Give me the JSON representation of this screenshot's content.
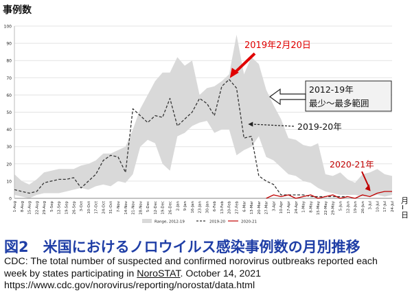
{
  "chart_data": {
    "type": "line",
    "ylabel": "事例数",
    "xlabel": "月-日",
    "ylim": [
      0,
      100
    ],
    "yticks": [
      0,
      10,
      20,
      30,
      40,
      50,
      60,
      70,
      80,
      90,
      100
    ],
    "grid": true,
    "legend_position": "bottom",
    "categories": [
      "1-Aug",
      "8-Aug",
      "15-Aug",
      "22-Aug",
      "29-Aug",
      "5-Sep",
      "12-Sep",
      "19-Sep",
      "26-Sep",
      "3-Oct",
      "10-Oct",
      "17-Oct",
      "24-Oct",
      "31-Oct",
      "7-Nov",
      "14-Nov",
      "21-Nov",
      "28-Nov",
      "5-Dec",
      "12-Dec",
      "19-Dec",
      "26-Dec",
      "2-Jan",
      "9-Jan",
      "16-Jan",
      "23-Jan",
      "30-Jan",
      "6-Feb",
      "13-Feb",
      "20-Feb",
      "27-Feb",
      "6-Mar",
      "13-Mar",
      "20-Mar",
      "27-Mar",
      "3-Apr",
      "10-Apr",
      "17-Apr",
      "24-Apr",
      "1-May",
      "8-May",
      "15-May",
      "22-May",
      "29-May",
      "5-Jun",
      "12-Jun",
      "19-Jun",
      "26-Jun",
      "3-Jul",
      "10-Jul",
      "17-Jul",
      "24-Jul"
    ],
    "range": {
      "name": "Range, 2012-19",
      "color": "#d9d9d9",
      "low": [
        2,
        1,
        0,
        2,
        3,
        3,
        3,
        4,
        5,
        6,
        5,
        7,
        8,
        7,
        10,
        9,
        14,
        30,
        34,
        32,
        20,
        16,
        36,
        38,
        42,
        44,
        45,
        38,
        40,
        40,
        25,
        28,
        30,
        36,
        24,
        22,
        18,
        14,
        13,
        10,
        9,
        6,
        4,
        3,
        2,
        2,
        2,
        1,
        1,
        2,
        1,
        2
      ],
      "high": [
        14,
        10,
        8,
        11,
        15,
        16,
        17,
        17,
        17,
        19,
        20,
        22,
        26,
        26,
        28,
        30,
        40,
        52,
        60,
        68,
        73,
        73,
        82,
        77,
        80,
        60,
        64,
        65,
        68,
        72,
        95,
        72,
        82,
        78,
        63,
        54,
        46,
        35,
        34,
        31,
        30,
        32,
        14,
        13,
        15,
        11,
        9,
        14,
        15,
        17,
        14,
        13
      ]
    },
    "series": [
      {
        "name": "2019-20",
        "color": "#333333",
        "dash": true,
        "values": [
          5,
          4,
          3,
          4,
          9,
          10,
          11,
          11,
          12,
          6,
          10,
          14,
          22,
          25,
          24,
          15,
          52,
          48,
          44,
          48,
          47,
          58,
          42,
          46,
          50,
          58,
          55,
          48,
          65,
          69,
          64,
          35,
          36,
          13,
          10,
          8,
          2,
          2,
          2,
          2,
          1,
          1,
          1,
          1,
          1,
          1,
          null,
          null,
          null,
          null,
          null,
          null
        ]
      },
      {
        "name": "2020-21",
        "color": "#c00000",
        "dash": false,
        "values": [
          null,
          null,
          null,
          null,
          null,
          null,
          null,
          null,
          null,
          null,
          null,
          null,
          null,
          null,
          null,
          null,
          null,
          null,
          null,
          null,
          null,
          null,
          null,
          null,
          null,
          null,
          null,
          null,
          null,
          null,
          null,
          null,
          null,
          null,
          0,
          2,
          1,
          2,
          0,
          1,
          2,
          0,
          1,
          2,
          0,
          1,
          0,
          2,
          1,
          3,
          4,
          4
        ]
      }
    ],
    "annotations": [
      {
        "text": "2019年2月20日",
        "color": "#e00000",
        "target_category": "20-Feb",
        "target_value": 69
      },
      {
        "text": "2012-19年",
        "line2": "最少～最多範囲",
        "boxed": true
      },
      {
        "text": "2019-20年",
        "color": "#111111",
        "target_category": "6-Mar",
        "target_value": 40
      },
      {
        "text": "2020-21年",
        "color": "#c00000",
        "target_category": "3-Jul",
        "target_value": 3
      }
    ]
  },
  "caption": {
    "figure_title": "図2　米国におけるノロウイルス感染事例数の月別推移",
    "source_line_1": "CDC: The total number of suspected and confirmed norovirus outbreaks reported each",
    "source_line_2_before": "week by states participating in ",
    "source_line_2_link": "NoroSTAT",
    "source_line_2_after": ". October 14, 2021",
    "source_line_3": "https://www.cdc.gov/norovirus/reporting/norostat/data.html"
  }
}
